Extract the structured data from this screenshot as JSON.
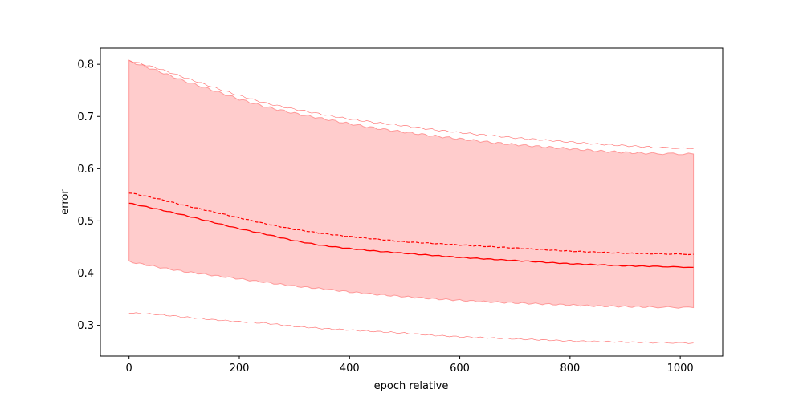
{
  "chart_data": {
    "type": "line",
    "title": "",
    "xlabel": "epoch relative",
    "ylabel": "error",
    "xlim": [
      -52,
      1077
    ],
    "ylim": [
      0.241,
      0.831
    ],
    "x_ticks": [
      0,
      200,
      400,
      600,
      800,
      1000
    ],
    "y_ticks": [
      0.3,
      0.4,
      0.5,
      0.6,
      0.7,
      0.8
    ],
    "x_tick_labels": [
      "0",
      "200",
      "400",
      "600",
      "800",
      "1000"
    ],
    "y_tick_labels": [
      "0.3",
      "0.4",
      "0.5",
      "0.6",
      "0.7",
      "0.8"
    ],
    "grid": false,
    "legend": false,
    "colors": {
      "line": "#ff0000",
      "band": "#ffcccc",
      "band_edge": "#ff9999",
      "outer": "#ff6666",
      "axes": "#000000"
    },
    "x": [
      0,
      50,
      100,
      150,
      200,
      250,
      300,
      350,
      400,
      450,
      500,
      550,
      600,
      650,
      700,
      750,
      800,
      850,
      900,
      950,
      1024
    ],
    "series": [
      {
        "style": "solid",
        "values": [
          0.534,
          0.523,
          0.511,
          0.498,
          0.485,
          0.474,
          0.462,
          0.453,
          0.447,
          0.442,
          0.438,
          0.434,
          0.43,
          0.427,
          0.424,
          0.421,
          0.418,
          0.416,
          0.414,
          0.413,
          0.411
        ]
      },
      {
        "style": "dashed",
        "values": [
          0.554,
          0.543,
          0.53,
          0.518,
          0.506,
          0.494,
          0.484,
          0.476,
          0.47,
          0.465,
          0.46,
          0.457,
          0.454,
          0.451,
          0.448,
          0.445,
          0.442,
          0.44,
          0.438,
          0.437,
          0.436
        ]
      },
      {
        "style": "band_upper",
        "values": [
          0.806,
          0.788,
          0.768,
          0.751,
          0.733,
          0.718,
          0.706,
          0.696,
          0.686,
          0.677,
          0.67,
          0.663,
          0.657,
          0.651,
          0.646,
          0.642,
          0.638,
          0.634,
          0.631,
          0.629,
          0.628
        ]
      },
      {
        "style": "band_lower",
        "values": [
          0.422,
          0.412,
          0.403,
          0.396,
          0.389,
          0.382,
          0.375,
          0.37,
          0.364,
          0.359,
          0.355,
          0.351,
          0.348,
          0.345,
          0.343,
          0.341,
          0.339,
          0.337,
          0.336,
          0.335,
          0.334
        ]
      },
      {
        "style": "outer_upper",
        "values": [
          0.807,
          0.793,
          0.775,
          0.757,
          0.74,
          0.725,
          0.714,
          0.704,
          0.695,
          0.688,
          0.682,
          0.675,
          0.669,
          0.664,
          0.659,
          0.655,
          0.651,
          0.647,
          0.644,
          0.641,
          0.638
        ]
      },
      {
        "style": "outer_lower",
        "values": [
          0.324,
          0.321,
          0.316,
          0.311,
          0.307,
          0.304,
          0.298,
          0.294,
          0.291,
          0.288,
          0.285,
          0.281,
          0.278,
          0.276,
          0.274,
          0.272,
          0.27,
          0.269,
          0.268,
          0.267,
          0.266
        ]
      }
    ]
  }
}
